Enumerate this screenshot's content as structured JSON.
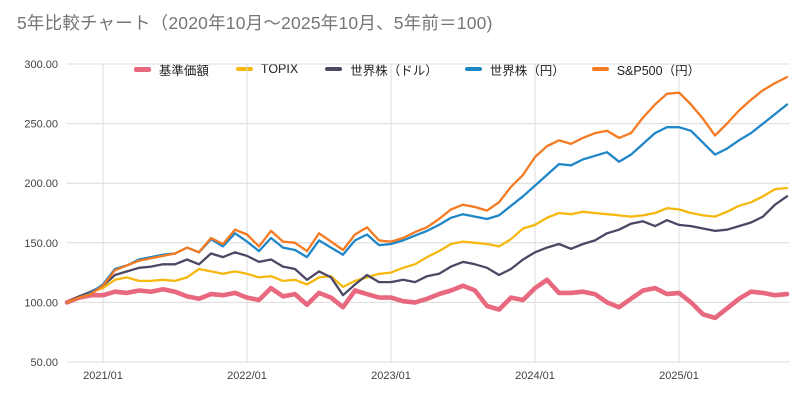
{
  "title": "5年比較チャート（2020年10月〜2025年10月、5年前＝100)",
  "chart_data": {
    "type": "line",
    "title": "5年比較チャート（2020年10月〜2025年10月、5年前＝100)",
    "x_start": "2020/10",
    "x_end": "2025/10",
    "x_tick_labels": [
      "2021/01",
      "2022/01",
      "2023/01",
      "2024/01",
      "2025/01"
    ],
    "x_tick_indices": [
      3,
      15,
      27,
      39,
      51
    ],
    "y_ticks": [
      50,
      100,
      150,
      200,
      250,
      300
    ],
    "y_tick_labels": [
      "50.00",
      "100.00",
      "150.00",
      "200.00",
      "250.00",
      "300.00"
    ],
    "ylim": [
      50,
      300
    ],
    "grid": true,
    "legend_position": "top",
    "colors": {
      "fund_nav": "#e8697f",
      "topix": "#f6b80e",
      "world_usd": "#4d4763",
      "world_jpy": "#1f86c8",
      "sp500_jpy": "#f57a21"
    },
    "series": [
      {
        "key": "fund-nav",
        "name": "基準価額",
        "color": "#e8697f",
        "stroke_width": 4.6,
        "values": [
          100,
          104,
          106,
          106,
          109,
          108,
          110,
          109,
          111,
          109,
          105,
          103,
          107,
          106,
          108,
          104,
          102,
          112,
          105,
          107,
          98,
          108,
          104,
          96,
          110,
          107,
          104,
          104,
          101,
          100,
          103,
          107,
          110,
          114,
          110,
          97,
          94,
          104,
          102,
          112,
          119,
          108,
          108,
          109,
          107,
          100,
          96,
          103,
          110,
          112,
          107,
          108,
          100,
          90,
          87,
          95,
          103,
          109,
          108,
          106,
          107
        ]
      },
      {
        "key": "topix",
        "name": "TOPIX",
        "color": "#f6b80e",
        "stroke_width": 2.3,
        "values": [
          100,
          105,
          109,
          112,
          119,
          121,
          118,
          118,
          119,
          118,
          121,
          128,
          126,
          124,
          126,
          124,
          121,
          122,
          118,
          119,
          115,
          121,
          122,
          113,
          118,
          121,
          124,
          125,
          129,
          132,
          138,
          143,
          149,
          151,
          150,
          149,
          147,
          153,
          162,
          165,
          171,
          175,
          174,
          176,
          175,
          174,
          173,
          172,
          173,
          175,
          179,
          178,
          175,
          173,
          172,
          176,
          181,
          184,
          189,
          195,
          196
        ]
      },
      {
        "key": "world-usd",
        "name": "世界株（ドル）",
        "color": "#4d4763",
        "stroke_width": 2.3,
        "values": [
          100,
          105,
          109,
          114,
          123,
          126,
          129,
          130,
          132,
          132,
          136,
          132,
          141,
          138,
          142,
          139,
          134,
          136,
          130,
          128,
          119,
          126,
          121,
          106,
          115,
          123,
          117,
          117,
          119,
          117,
          122,
          124,
          130,
          134,
          132,
          129,
          123,
          128,
          136,
          142,
          146,
          149,
          145,
          149,
          152,
          158,
          161,
          166,
          168,
          164,
          169,
          165,
          164,
          162,
          160,
          161,
          164,
          167,
          172,
          182,
          189
        ]
      },
      {
        "key": "world-jpy",
        "name": "世界株（円）",
        "color": "#1f86c8",
        "stroke_width": 2.3,
        "values": [
          100,
          104,
          108,
          115,
          128,
          131,
          136,
          138,
          140,
          141,
          146,
          142,
          153,
          147,
          158,
          151,
          143,
          154,
          146,
          144,
          138,
          152,
          146,
          140,
          152,
          157,
          148,
          149,
          152,
          156,
          160,
          165,
          171,
          174,
          172,
          170,
          173,
          181,
          189,
          198,
          207,
          216,
          215,
          220,
          223,
          226,
          218,
          224,
          233,
          242,
          247,
          247,
          244,
          234,
          224,
          229,
          236,
          242,
          250,
          258,
          266
        ]
      },
      {
        "key": "sp500-jpy",
        "name": "S&P500（円）",
        "color": "#f57a21",
        "stroke_width": 2.3,
        "values": [
          100,
          104,
          107,
          114,
          127,
          131,
          135,
          137,
          139,
          141,
          146,
          142,
          154,
          149,
          161,
          157,
          147,
          160,
          151,
          150,
          143,
          158,
          151,
          144,
          157,
          163,
          152,
          151,
          154,
          159,
          163,
          170,
          178,
          182,
          180,
          177,
          184,
          197,
          207,
          222,
          231,
          236,
          233,
          238,
          242,
          244,
          238,
          242,
          255,
          266,
          275,
          276,
          266,
          254,
          240,
          250,
          261,
          270,
          278,
          284,
          289
        ]
      }
    ]
  }
}
